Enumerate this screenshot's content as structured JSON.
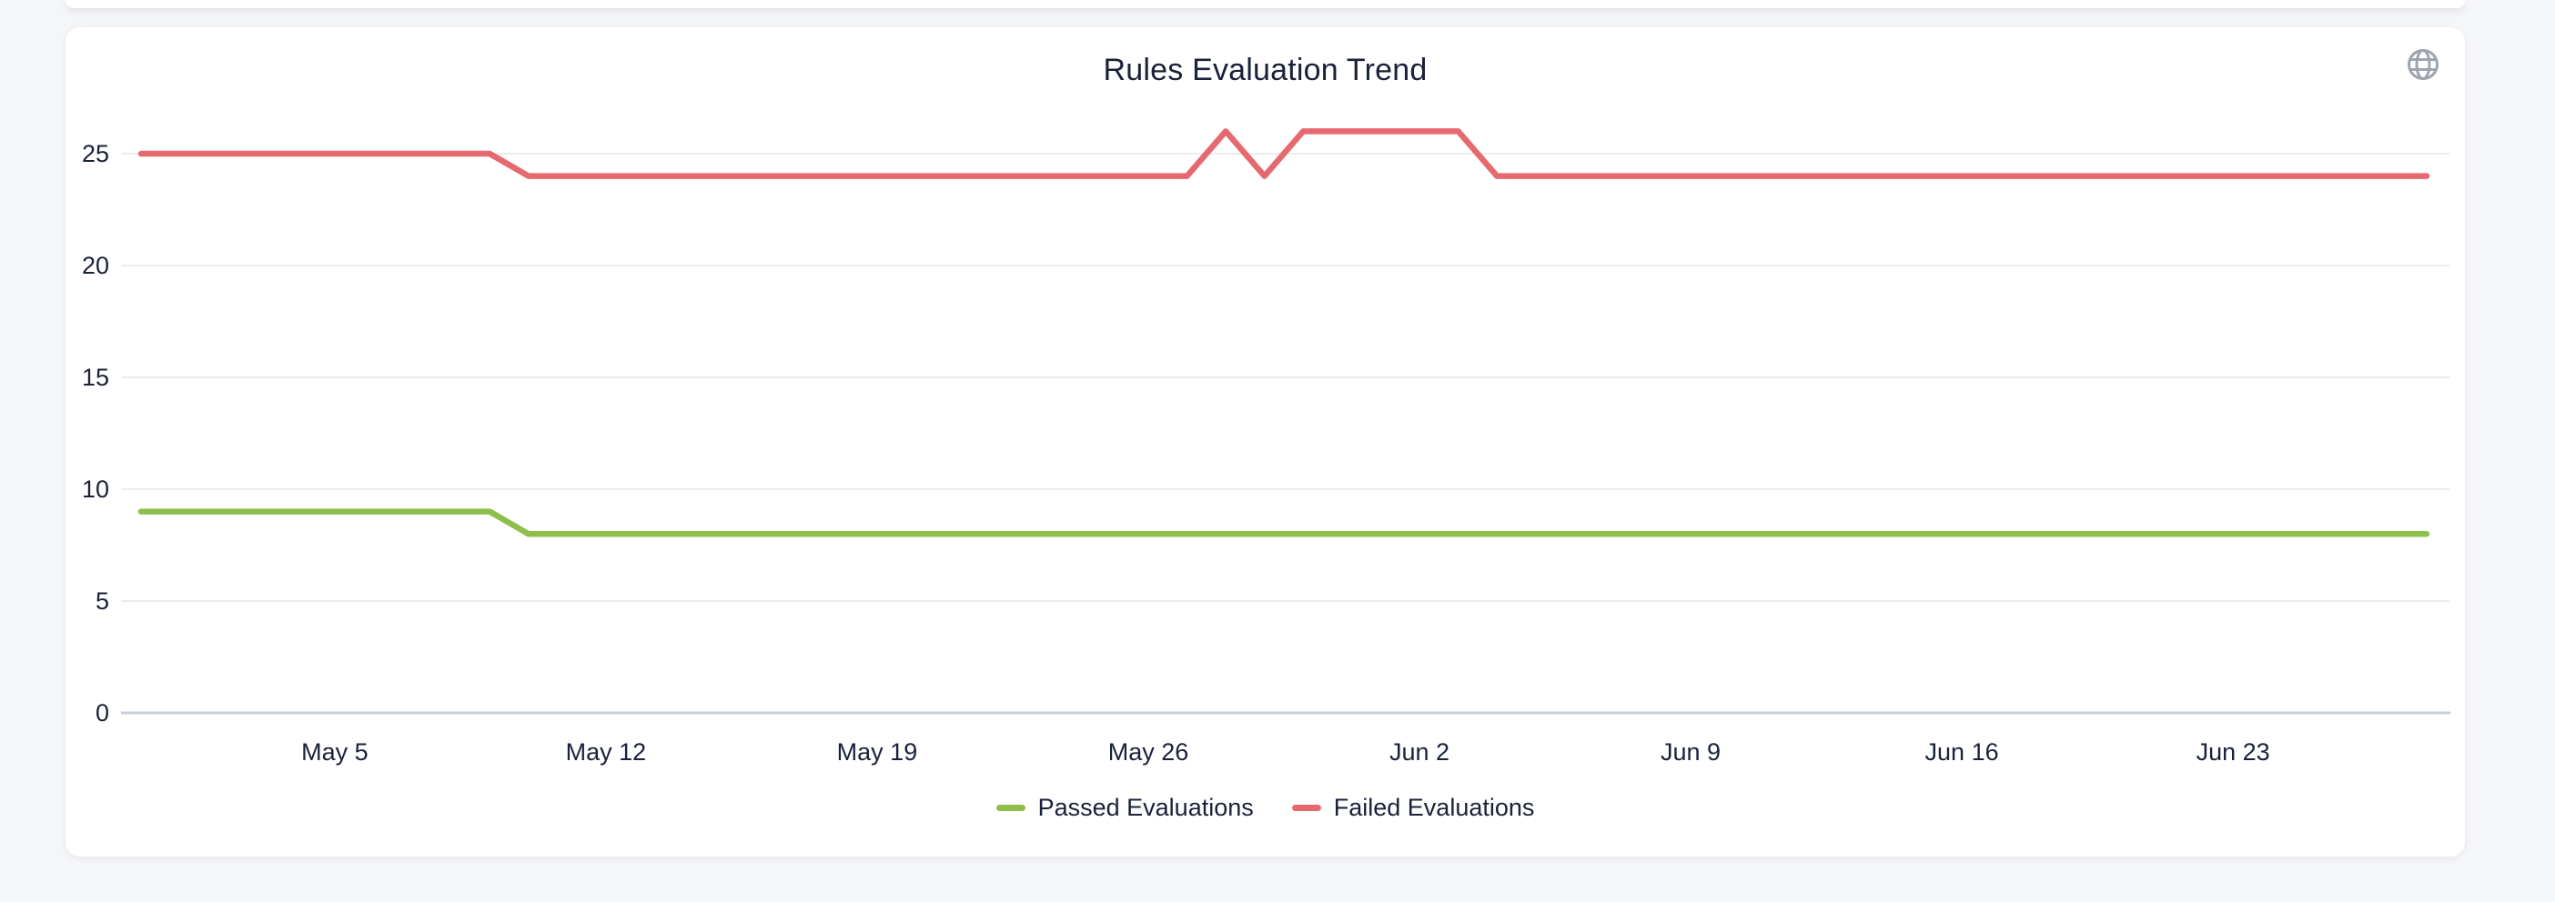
{
  "page": {
    "background_color": "#F5F6F8",
    "card_color": "#FFFFFF"
  },
  "header": {
    "globe_icon_color": "#9EA5AF"
  },
  "axis_colors": {
    "gridline": "#ECECEC",
    "zero_line": "#C7CFDC",
    "tick_text": "#1A2138"
  },
  "chart_data": {
    "type": "line",
    "title": "Rules Evaluation Trend",
    "xlabel": "",
    "ylabel": "",
    "grid": true,
    "legend_position": "bottom",
    "ylim": [
      0,
      26.6
    ],
    "y_ticks": [
      0,
      5,
      10,
      15,
      20,
      25
    ],
    "x": [
      "Apr 30",
      "May 1",
      "May 2",
      "May 3",
      "May 4",
      "May 5",
      "May 6",
      "May 7",
      "May 8",
      "May 9",
      "May 10",
      "May 11",
      "May 12",
      "May 13",
      "May 14",
      "May 15",
      "May 16",
      "May 17",
      "May 18",
      "May 19",
      "May 20",
      "May 21",
      "May 22",
      "May 23",
      "May 24",
      "May 25",
      "May 26",
      "May 27",
      "May 28",
      "May 29",
      "May 30",
      "May 31",
      "Jun 1",
      "Jun 2",
      "Jun 3",
      "Jun 4",
      "Jun 5",
      "Jun 6",
      "Jun 7",
      "Jun 8",
      "Jun 9",
      "Jun 10",
      "Jun 11",
      "Jun 12",
      "Jun 13",
      "Jun 14",
      "Jun 15",
      "Jun 16",
      "Jun 17",
      "Jun 18",
      "Jun 19",
      "Jun 20",
      "Jun 21",
      "Jun 22",
      "Jun 23",
      "Jun 24",
      "Jun 25",
      "Jun 26",
      "Jun 27",
      "Jun 28"
    ],
    "x_tick_indices": [
      5,
      12,
      19,
      26,
      33,
      40,
      47,
      54
    ],
    "x_tick_labels": [
      "May 5",
      "May 12",
      "May 19",
      "May 26",
      "Jun 2",
      "Jun 9",
      "Jun 16",
      "Jun 23"
    ],
    "series": [
      {
        "name": "Passed Evaluations",
        "color": "#8CC04B",
        "values": [
          9,
          9,
          9,
          9,
          9,
          9,
          9,
          9,
          9,
          9,
          8,
          8,
          8,
          8,
          8,
          8,
          8,
          8,
          8,
          8,
          8,
          8,
          8,
          8,
          8,
          8,
          8,
          8,
          8,
          8,
          8,
          8,
          8,
          8,
          8,
          8,
          8,
          8,
          8,
          8,
          8,
          8,
          8,
          8,
          8,
          8,
          8,
          8,
          8,
          8,
          8,
          8,
          8,
          8,
          8,
          8,
          8,
          8,
          8,
          8
        ]
      },
      {
        "name": "Failed Evaluations",
        "color": "#E5696E",
        "values": [
          25,
          25,
          25,
          25,
          25,
          25,
          25,
          25,
          25,
          25,
          24,
          24,
          24,
          24,
          24,
          24,
          24,
          24,
          24,
          24,
          24,
          24,
          24,
          24,
          24,
          24,
          24,
          24,
          26,
          24,
          26,
          26,
          26,
          26,
          26,
          24,
          24,
          24,
          24,
          24,
          24,
          24,
          24,
          24,
          24,
          24,
          24,
          24,
          24,
          24,
          24,
          24,
          24,
          24,
          24,
          24,
          24,
          24,
          24,
          24
        ]
      }
    ]
  }
}
